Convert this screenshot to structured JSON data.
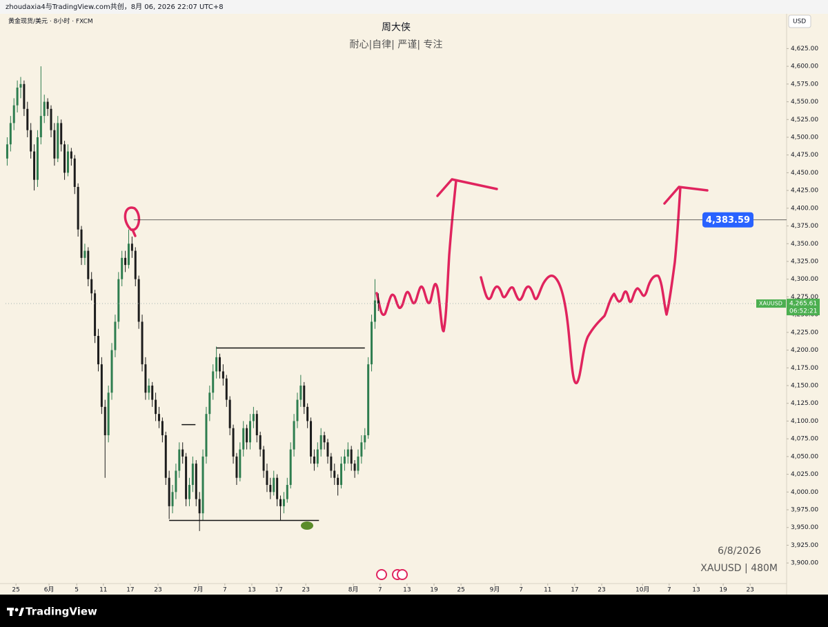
{
  "header": {
    "credit": "zhoudaxia4与TradingView.com共创，8月 06, 2026 22:07 UTC+8"
  },
  "chart_data": {
    "type": "candlestick",
    "title": "周大侠",
    "subtitle": "耐心|自律| 严谨| 专注",
    "symbol_info": "黄金现货/美元 · 8小时 · FXCM",
    "currency": "USD",
    "series": [
      {
        "name": "XAUUSD",
        "up_color": "#2e7d4f",
        "down_color": "#1c1c1c",
        "ohlc": [
          [
            4470,
            4500,
            4460,
            4490
          ],
          [
            4490,
            4530,
            4480,
            4520
          ],
          [
            4520,
            4555,
            4510,
            4545
          ],
          [
            4545,
            4580,
            4535,
            4570
          ],
          [
            4570,
            4585,
            4555,
            4575
          ],
          [
            4575,
            4580,
            4530,
            4540
          ],
          [
            4540,
            4550,
            4500,
            4510
          ],
          [
            4510,
            4520,
            4470,
            4480
          ],
          [
            4480,
            4490,
            4425,
            4440
          ],
          [
            4440,
            4510,
            4430,
            4500
          ],
          [
            4500,
            4600,
            4490,
            4530
          ],
          [
            4530,
            4560,
            4520,
            4550
          ],
          [
            4550,
            4555,
            4530,
            4540
          ],
          [
            4540,
            4545,
            4500,
            4510
          ],
          [
            4510,
            4520,
            4460,
            4470
          ],
          [
            4470,
            4530,
            4465,
            4520
          ],
          [
            4520,
            4525,
            4480,
            4490
          ],
          [
            4490,
            4495,
            4440,
            4450
          ],
          [
            4450,
            4490,
            4445,
            4480
          ],
          [
            4480,
            4485,
            4460,
            4470
          ],
          [
            4470,
            4475,
            4420,
            4430
          ],
          [
            4430,
            4435,
            4360,
            4370
          ],
          [
            4370,
            4375,
            4320,
            4330
          ],
          [
            4330,
            4350,
            4320,
            4340
          ],
          [
            4340,
            4345,
            4290,
            4300
          ],
          [
            4300,
            4310,
            4270,
            4280
          ],
          [
            4280,
            4285,
            4210,
            4220
          ],
          [
            4220,
            4230,
            4170,
            4180
          ],
          [
            4180,
            4190,
            4110,
            4120
          ],
          [
            4120,
            4130,
            4020,
            4080
          ],
          [
            4080,
            4150,
            4070,
            4140
          ],
          [
            4140,
            4210,
            4130,
            4200
          ],
          [
            4200,
            4250,
            4190,
            4240
          ],
          [
            4240,
            4310,
            4230,
            4300
          ],
          [
            4300,
            4340,
            4290,
            4330
          ],
          [
            4330,
            4340,
            4310,
            4320
          ],
          [
            4320,
            4370,
            4315,
            4350
          ],
          [
            4350,
            4360,
            4330,
            4340
          ],
          [
            4340,
            4345,
            4290,
            4300
          ],
          [
            4300,
            4305,
            4230,
            4240
          ],
          [
            4240,
            4250,
            4170,
            4180
          ],
          [
            4180,
            4190,
            4130,
            4140
          ],
          [
            4140,
            4160,
            4130,
            4150
          ],
          [
            4150,
            4155,
            4120,
            4130
          ],
          [
            4130,
            4140,
            4100,
            4110
          ],
          [
            4110,
            4120,
            4090,
            4100
          ],
          [
            4100,
            4105,
            4070,
            4080
          ],
          [
            4080,
            4085,
            4010,
            4020
          ],
          [
            4020,
            4030,
            3962,
            3980
          ],
          [
            3980,
            4010,
            3970,
            4000
          ],
          [
            4000,
            4040,
            3990,
            4030
          ],
          [
            4030,
            4070,
            4020,
            4060
          ],
          [
            4060,
            4070,
            4040,
            4050
          ],
          [
            4050,
            4055,
            3980,
            3990
          ],
          [
            3990,
            4020,
            3980,
            4010
          ],
          [
            4010,
            4050,
            4000,
            4040
          ],
          [
            4040,
            4045,
            3980,
            3990
          ],
          [
            3990,
            4000,
            3945,
            3970
          ],
          [
            3970,
            4060,
            3960,
            4050
          ],
          [
            4050,
            4120,
            4040,
            4110
          ],
          [
            4110,
            4150,
            4100,
            4140
          ],
          [
            4140,
            4180,
            4130,
            4170
          ],
          [
            4170,
            4205,
            4160,
            4190
          ],
          [
            4190,
            4195,
            4160,
            4170
          ],
          [
            4170,
            4180,
            4150,
            4160
          ],
          [
            4160,
            4165,
            4120,
            4130
          ],
          [
            4130,
            4135,
            4080,
            4090
          ],
          [
            4090,
            4095,
            4040,
            4050
          ],
          [
            4050,
            4055,
            4010,
            4020
          ],
          [
            4020,
            4070,
            4015,
            4060
          ],
          [
            4060,
            4100,
            4050,
            4090
          ],
          [
            4090,
            4095,
            4060,
            4070
          ],
          [
            4070,
            4110,
            4060,
            4100
          ],
          [
            4100,
            4120,
            4090,
            4110
          ],
          [
            4110,
            4115,
            4070,
            4080
          ],
          [
            4080,
            4085,
            4050,
            4060
          ],
          [
            4060,
            4065,
            4020,
            4030
          ],
          [
            4030,
            4040,
            4000,
            4010
          ],
          [
            4010,
            4020,
            3990,
            4000
          ],
          [
            4000,
            4030,
            3995,
            4020
          ],
          [
            4020,
            4025,
            3980,
            3990
          ],
          [
            3990,
            3995,
            3960,
            3980
          ],
          [
            3980,
            4000,
            3970,
            3990
          ],
          [
            3990,
            4020,
            3985,
            4010
          ],
          [
            4010,
            4070,
            4005,
            4060
          ],
          [
            4060,
            4110,
            4050,
            4100
          ],
          [
            4100,
            4140,
            4090,
            4130
          ],
          [
            4130,
            4165,
            4120,
            4150
          ],
          [
            4150,
            4155,
            4110,
            4120
          ],
          [
            4120,
            4125,
            4090,
            4100
          ],
          [
            4100,
            4105,
            4040,
            4050
          ],
          [
            4050,
            4060,
            4030,
            4040
          ],
          [
            4040,
            4070,
            4035,
            4060
          ],
          [
            4060,
            4090,
            4050,
            4080
          ],
          [
            4080,
            4085,
            4060,
            4070
          ],
          [
            4070,
            4075,
            4040,
            4050
          ],
          [
            4050,
            4055,
            4020,
            4030
          ],
          [
            4030,
            4040,
            4010,
            4020
          ],
          [
            4020,
            4025,
            3995,
            4010
          ],
          [
            4010,
            4050,
            4005,
            4040
          ],
          [
            4040,
            4060,
            4030,
            4050
          ],
          [
            4050,
            4070,
            4040,
            4060
          ],
          [
            4060,
            4065,
            4030,
            4040
          ],
          [
            4040,
            4045,
            4020,
            4030
          ],
          [
            4030,
            4060,
            4025,
            4050
          ],
          [
            4050,
            4080,
            4040,
            4070
          ],
          [
            4070,
            4090,
            4060,
            4080
          ],
          [
            4080,
            4190,
            4075,
            4180
          ],
          [
            4180,
            4250,
            4170,
            4240
          ],
          [
            4240,
            4300,
            4230,
            4270
          ],
          [
            4270,
            4280,
            4255,
            4265.61
          ]
        ]
      }
    ],
    "xlim": [
      -0.5,
      231
    ],
    "xticks": [
      {
        "value": 2.6,
        "label": "25"
      },
      {
        "value": 12.4,
        "label": "6月"
      },
      {
        "value": 20.6,
        "label": "5"
      },
      {
        "value": 28.5,
        "label": "11"
      },
      {
        "value": 36.5,
        "label": "17"
      },
      {
        "value": 44.7,
        "label": "23"
      },
      {
        "value": 56.6,
        "label": "7月"
      },
      {
        "value": 64.5,
        "label": "7"
      },
      {
        "value": 72.5,
        "label": "13"
      },
      {
        "value": 80.5,
        "label": "17"
      },
      {
        "value": 88.5,
        "label": "23"
      },
      {
        "value": 102.6,
        "label": "8月"
      },
      {
        "value": 110.5,
        "label": "7"
      },
      {
        "value": 118.5,
        "label": "13"
      },
      {
        "value": 126.5,
        "label": "19"
      },
      {
        "value": 134.5,
        "label": "25"
      },
      {
        "value": 144.5,
        "label": "9月"
      },
      {
        "value": 152.3,
        "label": "7"
      },
      {
        "value": 160.2,
        "label": "11"
      },
      {
        "value": 168.2,
        "label": "17"
      },
      {
        "value": 176.2,
        "label": "23"
      },
      {
        "value": 188.3,
        "label": "10月"
      },
      {
        "value": 196.2,
        "label": "7"
      },
      {
        "value": 204.2,
        "label": "13"
      },
      {
        "value": 212.2,
        "label": "19"
      },
      {
        "value": 220.2,
        "label": "23"
      }
    ],
    "ylim": [
      3871,
      4674
    ],
    "yticks": [
      {
        "value": 3900,
        "label": "3,900.00"
      },
      {
        "value": 3925,
        "label": "3,925.00"
      },
      {
        "value": 3950,
        "label": "3,950.00"
      },
      {
        "value": 3975,
        "label": "3,975.00"
      },
      {
        "value": 4000,
        "label": "4,000.00"
      },
      {
        "value": 4025,
        "label": "4,025.00"
      },
      {
        "value": 4050,
        "label": "4,050.00"
      },
      {
        "value": 4075,
        "label": "4,075.00"
      },
      {
        "value": 4100,
        "label": "4,100.00"
      },
      {
        "value": 4125,
        "label": "4,125.00"
      },
      {
        "value": 4150,
        "label": "4,150.00"
      },
      {
        "value": 4175,
        "label": "4,175.00"
      },
      {
        "value": 4200,
        "label": "4,200.00"
      },
      {
        "value": 4225,
        "label": "4,225.00"
      },
      {
        "value": 4250,
        "label": "4,250.00"
      },
      {
        "value": 4275,
        "label": "4,275.00"
      },
      {
        "value": 4300,
        "label": "4,300.00"
      },
      {
        "value": 4325,
        "label": "4,325.00"
      },
      {
        "value": 4350,
        "label": "4,350.00"
      },
      {
        "value": 4375,
        "label": "4,375.00"
      },
      {
        "value": 4400,
        "label": "4,400.00"
      },
      {
        "value": 4425,
        "label": "4,425.00"
      },
      {
        "value": 4450,
        "label": "4,450.00"
      },
      {
        "value": 4475,
        "label": "4,475.00"
      },
      {
        "value": 4500,
        "label": "4,500.00"
      },
      {
        "value": 4525,
        "label": "4,525.00"
      },
      {
        "value": 4550,
        "label": "4,550.00"
      },
      {
        "value": 4575,
        "label": "4,575.00"
      },
      {
        "value": 4600,
        "label": "4,600.00"
      },
      {
        "value": 4625,
        "label": "4,625.00"
      }
    ],
    "last_price": {
      "value": 4265.61,
      "label": "4,265.61",
      "countdown": "06:52:21"
    },
    "price_line": {
      "value": 4383.59,
      "label": "4,383.59",
      "from": 37.5,
      "color": "#2962ff"
    },
    "drawings": [
      {
        "value": 4203,
        "from": 62,
        "to": 106
      },
      {
        "value": 3960,
        "from": 48,
        "to": 92.4
      },
      {
        "value": 4095,
        "from": 51.7,
        "to": 55.8
      }
    ],
    "watermark": {
      "date": "6/8/2026",
      "symbol": "XAUUSD | 480M"
    }
  },
  "footer": {
    "brand": "TradingView"
  }
}
